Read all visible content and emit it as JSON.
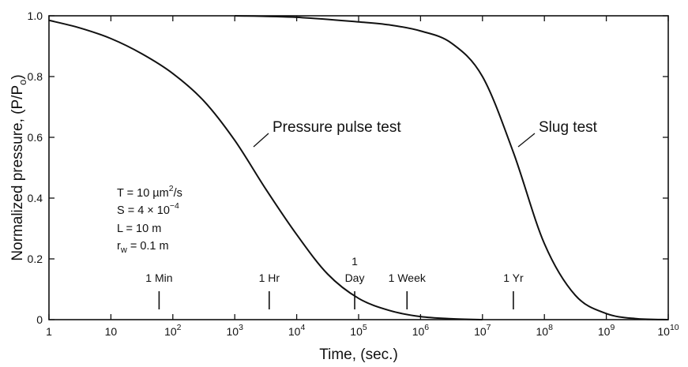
{
  "chart_data": {
    "type": "line",
    "xscale": "log",
    "xlim": [
      1,
      10000000000
    ],
    "ylim": [
      0,
      1.0
    ],
    "xlabel": "Time, (sec.)",
    "ylabel": "Normalized pressure, (P/P",
    "ylabel_subscript": "o",
    "ylabel_suffix": ")",
    "grid": false,
    "x_ticks": [
      {
        "value": 1,
        "label": "1"
      },
      {
        "value": 10,
        "label": "10"
      },
      {
        "value": 100,
        "base": "10",
        "exp": "2"
      },
      {
        "value": 1000,
        "base": "10",
        "exp": "3"
      },
      {
        "value": 10000,
        "base": "10",
        "exp": "4"
      },
      {
        "value": 100000,
        "base": "10",
        "exp": "5"
      },
      {
        "value": 1000000,
        "base": "10",
        "exp": "6"
      },
      {
        "value": 10000000,
        "base": "10",
        "exp": "7"
      },
      {
        "value": 100000000,
        "base": "10",
        "exp": "8"
      },
      {
        "value": 1000000000,
        "base": "10",
        "exp": "9"
      },
      {
        "value": 10000000000,
        "base": "10",
        "exp": "10"
      }
    ],
    "y_ticks": [
      {
        "value": 0,
        "label": "0"
      },
      {
        "value": 0.2,
        "label": "0.2"
      },
      {
        "value": 0.4,
        "label": "0.4"
      },
      {
        "value": 0.6,
        "label": "0.6"
      },
      {
        "value": 0.8,
        "label": "0.8"
      },
      {
        "value": 1.0,
        "label": "1.0"
      }
    ],
    "series": [
      {
        "name": "Pressure pulse test",
        "x": [
          1,
          3.16,
          10,
          31.6,
          100,
          316,
          1000,
          3160,
          10000,
          31600,
          100000,
          316000,
          1000000,
          3160000,
          10000000
        ],
        "y": [
          0.985,
          0.96,
          0.925,
          0.875,
          0.81,
          0.72,
          0.59,
          0.43,
          0.28,
          0.15,
          0.07,
          0.03,
          0.01,
          0.003,
          0.0
        ]
      },
      {
        "name": "Slug test",
        "x": [
          1000,
          10000,
          100000,
          316000,
          1000000,
          3160000,
          10000000,
          31600000,
          100000000,
          316000000,
          1000000000,
          3160000000,
          10000000000
        ],
        "y": [
          1.0,
          0.995,
          0.98,
          0.97,
          0.95,
          0.91,
          0.8,
          0.55,
          0.25,
          0.08,
          0.02,
          0.003,
          0.0
        ]
      }
    ],
    "annotations": {
      "curve_labels": [
        {
          "text": "Pressure pulse test",
          "series": 0
        },
        {
          "text": "Slug test",
          "series": 1
        }
      ],
      "parameters": [
        {
          "lhs": "T",
          "rhs": "= 10 µm",
          "sup": "2",
          "tail": "/s"
        },
        {
          "lhs": "S",
          "rhs": "= 4 × 10",
          "sup": "−4",
          "tail": ""
        },
        {
          "lhs": "L",
          "rhs": "= 10 m",
          "sup": "",
          "tail": ""
        },
        {
          "lhs": "r",
          "sub": "w",
          "rhs": "= 0.1 m",
          "sup": "",
          "tail": ""
        }
      ],
      "time_markers": [
        {
          "label": "1 Min",
          "x": 60
        },
        {
          "label": "1 Hr",
          "x": 3600
        },
        {
          "label": "1",
          "label2": "Day",
          "x": 86400
        },
        {
          "label": "1 Week",
          "x": 604800
        },
        {
          "label": "1 Yr",
          "x": 31536000
        }
      ]
    }
  }
}
